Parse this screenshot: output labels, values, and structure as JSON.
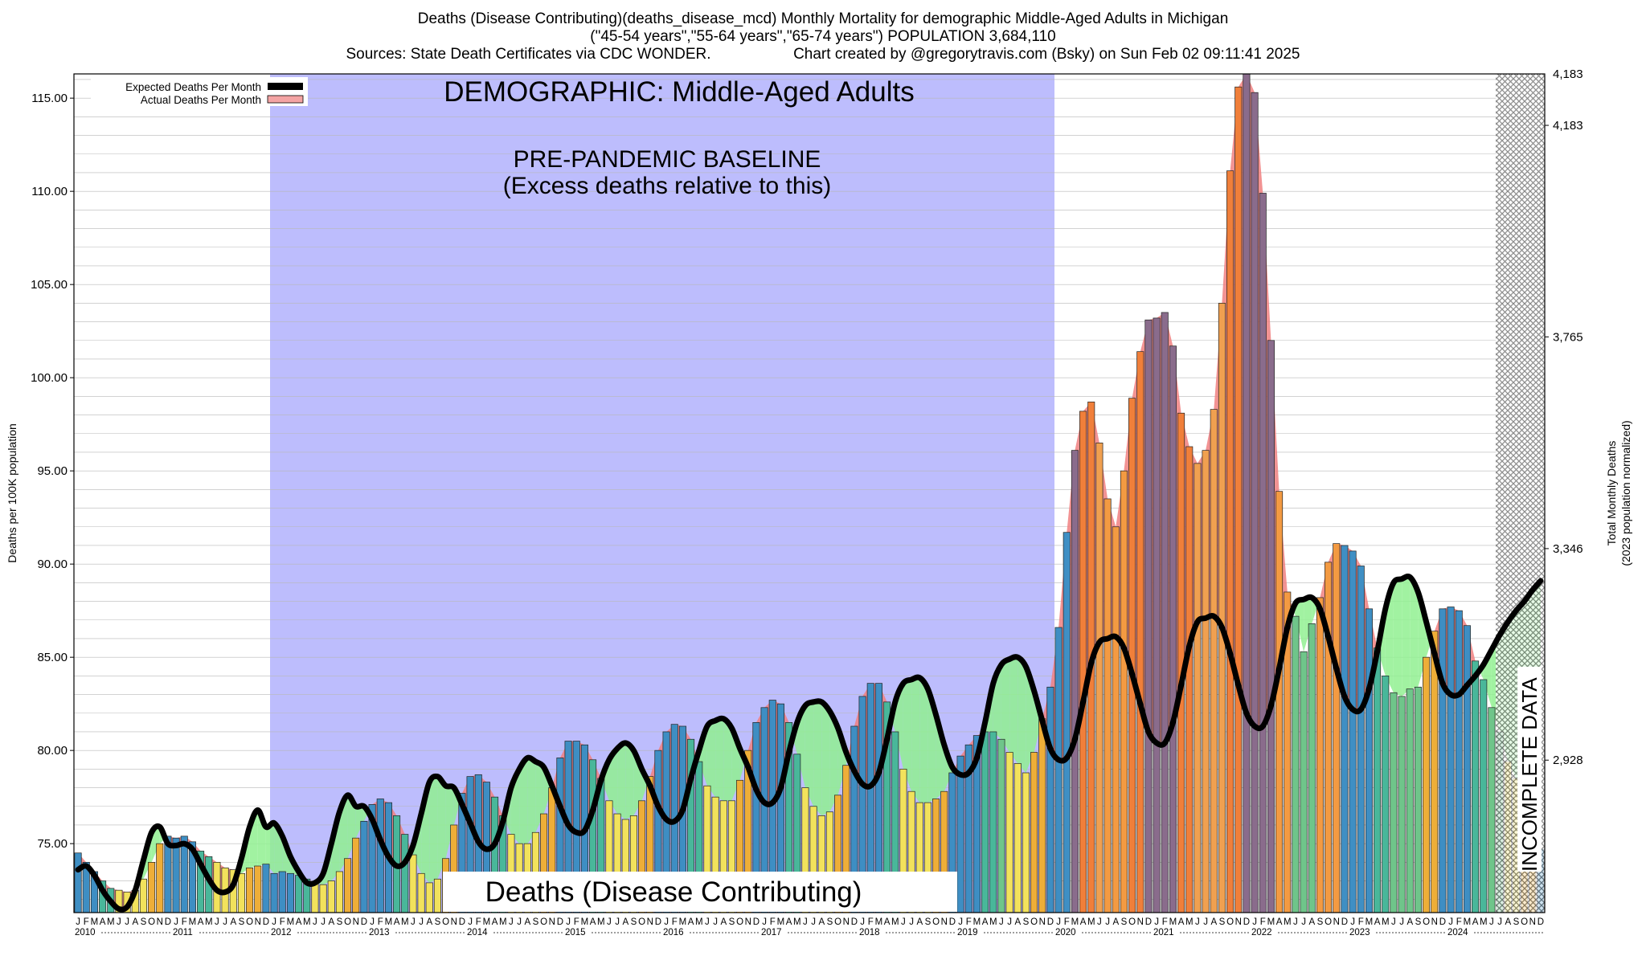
{
  "header": {
    "line1": "Deaths (Disease Contributing)(deaths_disease_mcd) Monthly Mortality for demographic Middle-Aged Adults in Michigan",
    "line2": "(\"45-54 years\",\"55-64 years\",\"65-74 years\") POPULATION 3,684,110",
    "line3_left": "Sources: State Death Certificates via CDC WONDER.",
    "line3_right": "Chart created by @gregorytravis.com (Bsky) on Sun Feb 02 09:11:41 2025"
  },
  "chart_data": {
    "type": "bar",
    "title": "DEMOGRAPHIC: Middle-Aged Adults",
    "baseline_label_1": "PRE-PANDEMIC BASELINE",
    "baseline_label_2": "(Excess deaths relative to this)",
    "bottom_label": "Deaths (Disease Contributing)",
    "incomplete_label": "INCOMPLETE DATA",
    "ylabel_left": "Deaths per 100K population",
    "ylabel_right_1": "Total Monthly Deaths",
    "ylabel_right_2": "(2023 population normalized)",
    "ylim": [
      71.3,
      116.3
    ],
    "yticks_left": [
      "75.00",
      "80.00",
      "85.00",
      "90.00",
      "95.00",
      "100.00",
      "105.00",
      "110.00",
      "115.00"
    ],
    "yticks_right": [
      {
        "label": "2,928",
        "value": 79.48
      },
      {
        "label": "3,346",
        "value": 90.83
      },
      {
        "label": "3,765",
        "value": 102.19
      },
      {
        "label": "4,183",
        "value": 113.54
      }
    ],
    "month_letters": [
      "J",
      "F",
      "M",
      "A",
      "M",
      "J",
      "J",
      "A",
      "S",
      "O",
      "N",
      "D"
    ],
    "years": [
      "2010",
      "2011",
      "2012",
      "2013",
      "2014",
      "2015",
      "2016",
      "2017",
      "2018",
      "2019",
      "2020",
      "2021",
      "2022",
      "2023",
      "2024"
    ],
    "baseline_years": [
      "2012",
      "2019"
    ],
    "incomplete_from": "2024-07",
    "legend": [
      {
        "label": "Expected Deaths Per Month",
        "color": "#000000"
      },
      {
        "label": "Actual Deaths Per Month",
        "color": "#f4a4a4"
      }
    ],
    "colors": {
      "baseline_shade": "#bdbdfd",
      "excess_fill": "#f08080",
      "deficit_fill": "#90f090",
      "expected_line": "#000000"
    },
    "series": [
      {
        "name": "Actual Deaths Per Month",
        "values": [
          74.5,
          74.0,
          73.5,
          73.0,
          72.6,
          72.5,
          72.4,
          72.5,
          73.1,
          74.0,
          75.0,
          75.4,
          75.3,
          75.4,
          75.1,
          74.6,
          74.3,
          74.0,
          73.7,
          73.6,
          73.4,
          73.7,
          73.8,
          73.9,
          73.4,
          73.5,
          73.4,
          73.3,
          73.1,
          72.9,
          72.8,
          73.0,
          73.5,
          74.2,
          75.3,
          76.2,
          77.1,
          77.4,
          77.2,
          76.5,
          75.5,
          74.4,
          73.4,
          72.9,
          73.1,
          74.2,
          76.0,
          77.7,
          78.6,
          78.7,
          78.3,
          77.5,
          76.5,
          75.5,
          75.0,
          75.0,
          75.6,
          76.6,
          78.0,
          79.6,
          80.5,
          80.5,
          80.3,
          79.5,
          78.5,
          77.3,
          76.6,
          76.3,
          76.5,
          77.3,
          78.6,
          80.0,
          81.0,
          81.4,
          81.3,
          80.6,
          79.4,
          78.1,
          77.5,
          77.3,
          77.3,
          78.4,
          80.0,
          81.5,
          82.3,
          82.7,
          82.5,
          81.5,
          79.8,
          78.0,
          77.0,
          76.5,
          76.7,
          77.6,
          79.2,
          81.3,
          82.9,
          83.6,
          83.6,
          82.6,
          81.0,
          79.0,
          77.8,
          77.2,
          77.2,
          77.4,
          77.8,
          78.8,
          79.7,
          80.3,
          80.8,
          81.0,
          81.0,
          80.6,
          79.9,
          79.3,
          78.8,
          79.9,
          81.7,
          83.4,
          86.6,
          91.7,
          96.1,
          98.2,
          98.7,
          96.5,
          93.5,
          92.0,
          95.0,
          98.9,
          101.4,
          103.1,
          103.2,
          103.5,
          101.7,
          98.1,
          96.3,
          95.4,
          96.1,
          98.3,
          104.0,
          111.1,
          115.6,
          116.3,
          115.3,
          109.9,
          102.0,
          93.9,
          88.5,
          87.2,
          85.3,
          86.8,
          88.2,
          90.1,
          91.1,
          91.0,
          90.7,
          89.9,
          87.6,
          85.5,
          84.0,
          83.1,
          82.9,
          83.3,
          83.4,
          85.0,
          86.4,
          87.6,
          87.7,
          87.5,
          86.7,
          84.8,
          83.8,
          82.3,
          81.0,
          79.4,
          78.5,
          77.3,
          76.0,
          74.7
        ]
      },
      {
        "name": "Expected Deaths Per Month",
        "values": [
          73.6,
          73.8,
          73.3,
          72.5,
          71.9,
          71.5,
          71.6,
          72.5,
          74.1,
          75.6,
          75.9,
          75.0,
          74.9,
          75.0,
          74.7,
          73.9,
          73.1,
          72.5,
          72.4,
          72.8,
          74.2,
          75.9,
          76.8,
          75.9,
          76.1,
          75.4,
          74.3,
          73.5,
          72.9,
          72.9,
          73.4,
          75.0,
          76.7,
          77.6,
          77.0,
          77.0,
          76.3,
          75.2,
          74.3,
          73.8,
          74.0,
          74.9,
          76.6,
          78.3,
          78.6,
          78.1,
          78.0,
          77.1,
          76.1,
          75.1,
          74.7,
          75.0,
          76.2,
          78.0,
          79.0,
          79.6,
          79.4,
          79.1,
          78.1,
          77.0,
          76.0,
          75.6,
          75.7,
          76.8,
          78.4,
          79.5,
          80.1,
          80.4,
          80.0,
          79.0,
          78.1,
          77.0,
          76.3,
          76.2,
          76.8,
          78.5,
          80.0,
          81.3,
          81.6,
          81.7,
          81.2,
          80.1,
          79.1,
          77.9,
          77.2,
          77.2,
          78.0,
          79.9,
          81.5,
          82.4,
          82.6,
          82.6,
          82.1,
          81.2,
          79.9,
          78.9,
          78.2,
          78.1,
          78.8,
          80.6,
          82.6,
          83.6,
          83.8,
          83.9,
          83.3,
          81.9,
          80.3,
          79.1,
          78.7,
          78.8,
          79.6,
          81.5,
          83.6,
          84.6,
          84.9,
          85.0,
          84.5,
          83.2,
          81.6,
          80.1,
          79.5,
          79.6,
          80.6,
          82.6,
          84.7,
          85.8,
          86.0,
          86.1,
          85.5,
          84.1,
          82.5,
          81.0,
          80.4,
          80.4,
          81.5,
          83.5,
          85.6,
          86.9,
          87.1,
          87.2,
          86.6,
          85.2,
          83.5,
          82.0,
          81.3,
          81.3,
          82.4,
          84.4,
          86.6,
          87.9,
          88.1,
          88.2,
          87.6,
          86.1,
          84.4,
          82.9,
          82.2,
          82.2,
          83.3,
          85.3,
          87.6,
          89.0,
          89.2,
          89.3,
          88.5,
          86.9,
          85.2,
          83.6,
          83.0,
          83.0,
          83.5,
          84.0,
          84.6,
          85.4,
          86.2,
          86.9,
          87.5,
          88.0,
          88.6,
          89.1
        ]
      }
    ]
  }
}
